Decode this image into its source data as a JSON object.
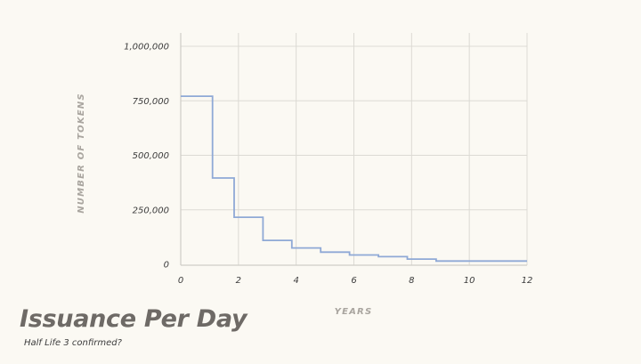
{
  "chart_data": {
    "type": "line",
    "step": true,
    "title": "Issuance Per Day",
    "subtitle": "Half Life 3 confirmed?",
    "xlabel": "YEARS",
    "ylabel": "NUMBER OF TOKENS",
    "xlim": [
      0,
      12
    ],
    "ylim": [
      0,
      1000000
    ],
    "xticks": [
      0,
      2,
      4,
      6,
      8,
      10,
      12
    ],
    "xtick_labels": [
      "0",
      "2",
      "4",
      "6",
      "8",
      "10",
      "12"
    ],
    "yticks": [
      0,
      250000,
      500000,
      750000,
      1000000
    ],
    "ytick_labels": [
      "0",
      "250,000",
      "500,000",
      "750,000",
      "1,000,000"
    ],
    "grid": true,
    "legend": "none",
    "colors": {
      "line": "#8fa9d6",
      "grid": "#dcdad4",
      "axis": "#cfcdc7",
      "background": "#fbf9f3"
    },
    "series": [
      {
        "x": [
          0,
          1.1,
          1.1,
          1.85,
          1.85,
          2.85,
          2.85,
          3.85,
          3.85,
          4.85,
          4.85,
          5.85,
          5.85,
          6.85,
          6.85,
          7.85,
          7.85,
          8.85,
          8.85,
          12
        ],
        "y": [
          771000,
          771000,
          396000,
          396000,
          216000,
          216000,
          110000,
          110000,
          75000,
          75000,
          56000,
          56000,
          43000,
          43000,
          35000,
          35000,
          24000,
          24000,
          15000,
          15000
        ]
      }
    ]
  }
}
